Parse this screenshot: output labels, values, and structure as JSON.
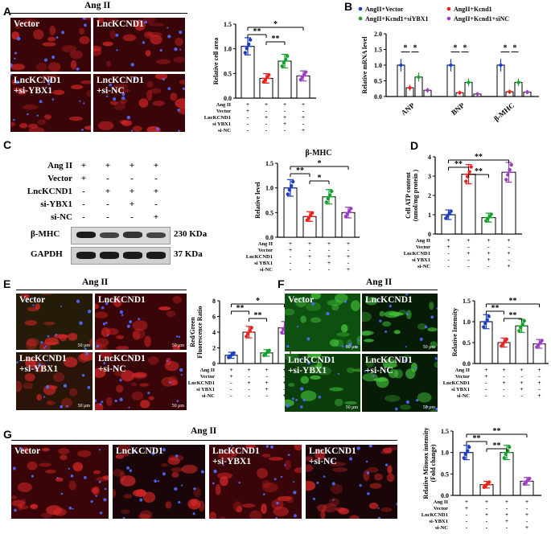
{
  "panels": {
    "A": "A",
    "B": "B",
    "C": "C",
    "D": "D",
    "E": "E",
    "F": "F",
    "G": "G"
  },
  "headers": {
    "angii": "Ang II"
  },
  "cell_labels": {
    "vector": "Vector",
    "lnc": "LncKCND1",
    "lnc_si_ybx1": "LncKCND1\n+si-YBX1",
    "lnc_si_nc": "LncKCND1\n+si-NC",
    "lnc_si_ybx1_g": "LncKCND1\n+si-YBX1",
    "lnc_si_nc_g": "LncKCND1\n+si-NC"
  },
  "scale_bar": "50 μm",
  "row_labels": {
    "angii": "Ang II",
    "vector": "Vector",
    "lnc": "LncKCND1",
    "si_ybx1": "si YBX1",
    "si_ybx1_dash": "si-YBX1",
    "si_nc": "si-NC",
    "lnc_caps": "LncKCND1"
  },
  "signs": {
    "four": [
      "+",
      "+",
      "+",
      "+"
    ],
    "vector": [
      "+",
      "-",
      "-",
      "-"
    ],
    "lnc": [
      "-",
      "+",
      "+",
      "+"
    ],
    "ybx": [
      "-",
      "-",
      "+",
      "-"
    ],
    "nc": [
      "-",
      "-",
      "-",
      "+"
    ]
  },
  "blot": {
    "bmhc": "β-MHC",
    "gapdh": "GAPDH",
    "bmhc_kda": "230 KDa",
    "gapdh_kda": "37 KDa"
  },
  "sig": {
    "double": "**",
    "single": "*"
  },
  "colors": {
    "vector": "#1f3fbf",
    "lnc": "#e8231f",
    "ybx": "#16a02e",
    "nc": "#9b3fbf"
  },
  "chart_data": [
    {
      "id": "A",
      "type": "bar",
      "ylabel": "Relative cell area",
      "ylim": [
        0,
        1.5
      ],
      "yticks": [
        "0.0",
        "0.5",
        "1.0",
        "1.5"
      ],
      "categories": [
        "Vector",
        "LncKCND1",
        "LncKCND1+si-YBX1",
        "LncKCND1+si-NC"
      ],
      "values": [
        1.05,
        0.4,
        0.75,
        0.45
      ]
    },
    {
      "id": "B",
      "type": "bar",
      "ylabel": "Relative mRNA level",
      "ylim": [
        0,
        2.0
      ],
      "yticks": [
        "0.0",
        "0.5",
        "1.0",
        "1.5",
        "2.0"
      ],
      "categories": [
        "ANP",
        "BNP",
        "β-MHC"
      ],
      "series": [
        {
          "name": "AngII+Vector",
          "values": [
            1.0,
            1.0,
            1.0
          ]
        },
        {
          "name": "AngII+Kcnd1",
          "values": [
            0.28,
            0.12,
            0.15
          ]
        },
        {
          "name": "AngII+Kcnd1+siYBX1",
          "values": [
            0.62,
            0.45,
            0.45
          ]
        },
        {
          "name": "AngII+Kcnd1+siNC",
          "values": [
            0.2,
            0.08,
            0.14
          ]
        }
      ]
    },
    {
      "id": "C",
      "type": "bar",
      "title": "β-MHC",
      "ylabel": "Relative level",
      "ylim": [
        0,
        1.5
      ],
      "yticks": [
        "0.0",
        "0.5",
        "1.0",
        "1.5"
      ],
      "categories": [
        "Vector",
        "LncKCND1",
        "LncKCND1+si-YBX1",
        "LncKCND1+si-NC"
      ],
      "values": [
        1.0,
        0.42,
        0.82,
        0.5
      ]
    },
    {
      "id": "D",
      "type": "bar",
      "ylabel": "Cell ATP content\n(nmol/mg protein )",
      "ylim": [
        0,
        4
      ],
      "yticks": [
        "0",
        "1",
        "2",
        "3",
        "4"
      ],
      "categories": [
        "Vector",
        "LncKCND1",
        "LncKCND1+si-YBX1",
        "LncKCND1+si-NC"
      ],
      "values": [
        1.0,
        3.1,
        0.85,
        3.2
      ]
    },
    {
      "id": "E",
      "type": "bar",
      "ylabel": "Red/Green\nFluorescence Ratio",
      "ylim": [
        0,
        8
      ],
      "yticks": [
        "0",
        "2",
        "4",
        "6",
        "8"
      ],
      "categories": [
        "Vector",
        "LncKCND1",
        "LncKCND1+si-YBX1",
        "LncKCND1+si-NC"
      ],
      "values": [
        1.05,
        4.0,
        1.35,
        4.55
      ]
    },
    {
      "id": "F",
      "type": "bar",
      "ylabel": "Relative Intensity",
      "ylim": [
        0,
        1.5
      ],
      "yticks": [
        "0.0",
        "0.5",
        "1.0",
        "1.5"
      ],
      "categories": [
        "Vector",
        "LncKCND1",
        "LncKCND1+si-YBX1",
        "LncKCND1+si-NC"
      ],
      "values": [
        1.0,
        0.5,
        0.9,
        0.47
      ]
    },
    {
      "id": "G",
      "type": "bar",
      "ylabel": "Relative Mitosox intensity\n(Fold change)",
      "ylim": [
        0,
        1.5
      ],
      "yticks": [
        "0.0",
        "0.5",
        "1.0",
        "1.5"
      ],
      "categories": [
        "Vector",
        "LncKCND1",
        "LncKCND1+si-YBX1",
        "LncKCND1+si-NC"
      ],
      "values": [
        1.0,
        0.25,
        1.0,
        0.33
      ]
    }
  ]
}
